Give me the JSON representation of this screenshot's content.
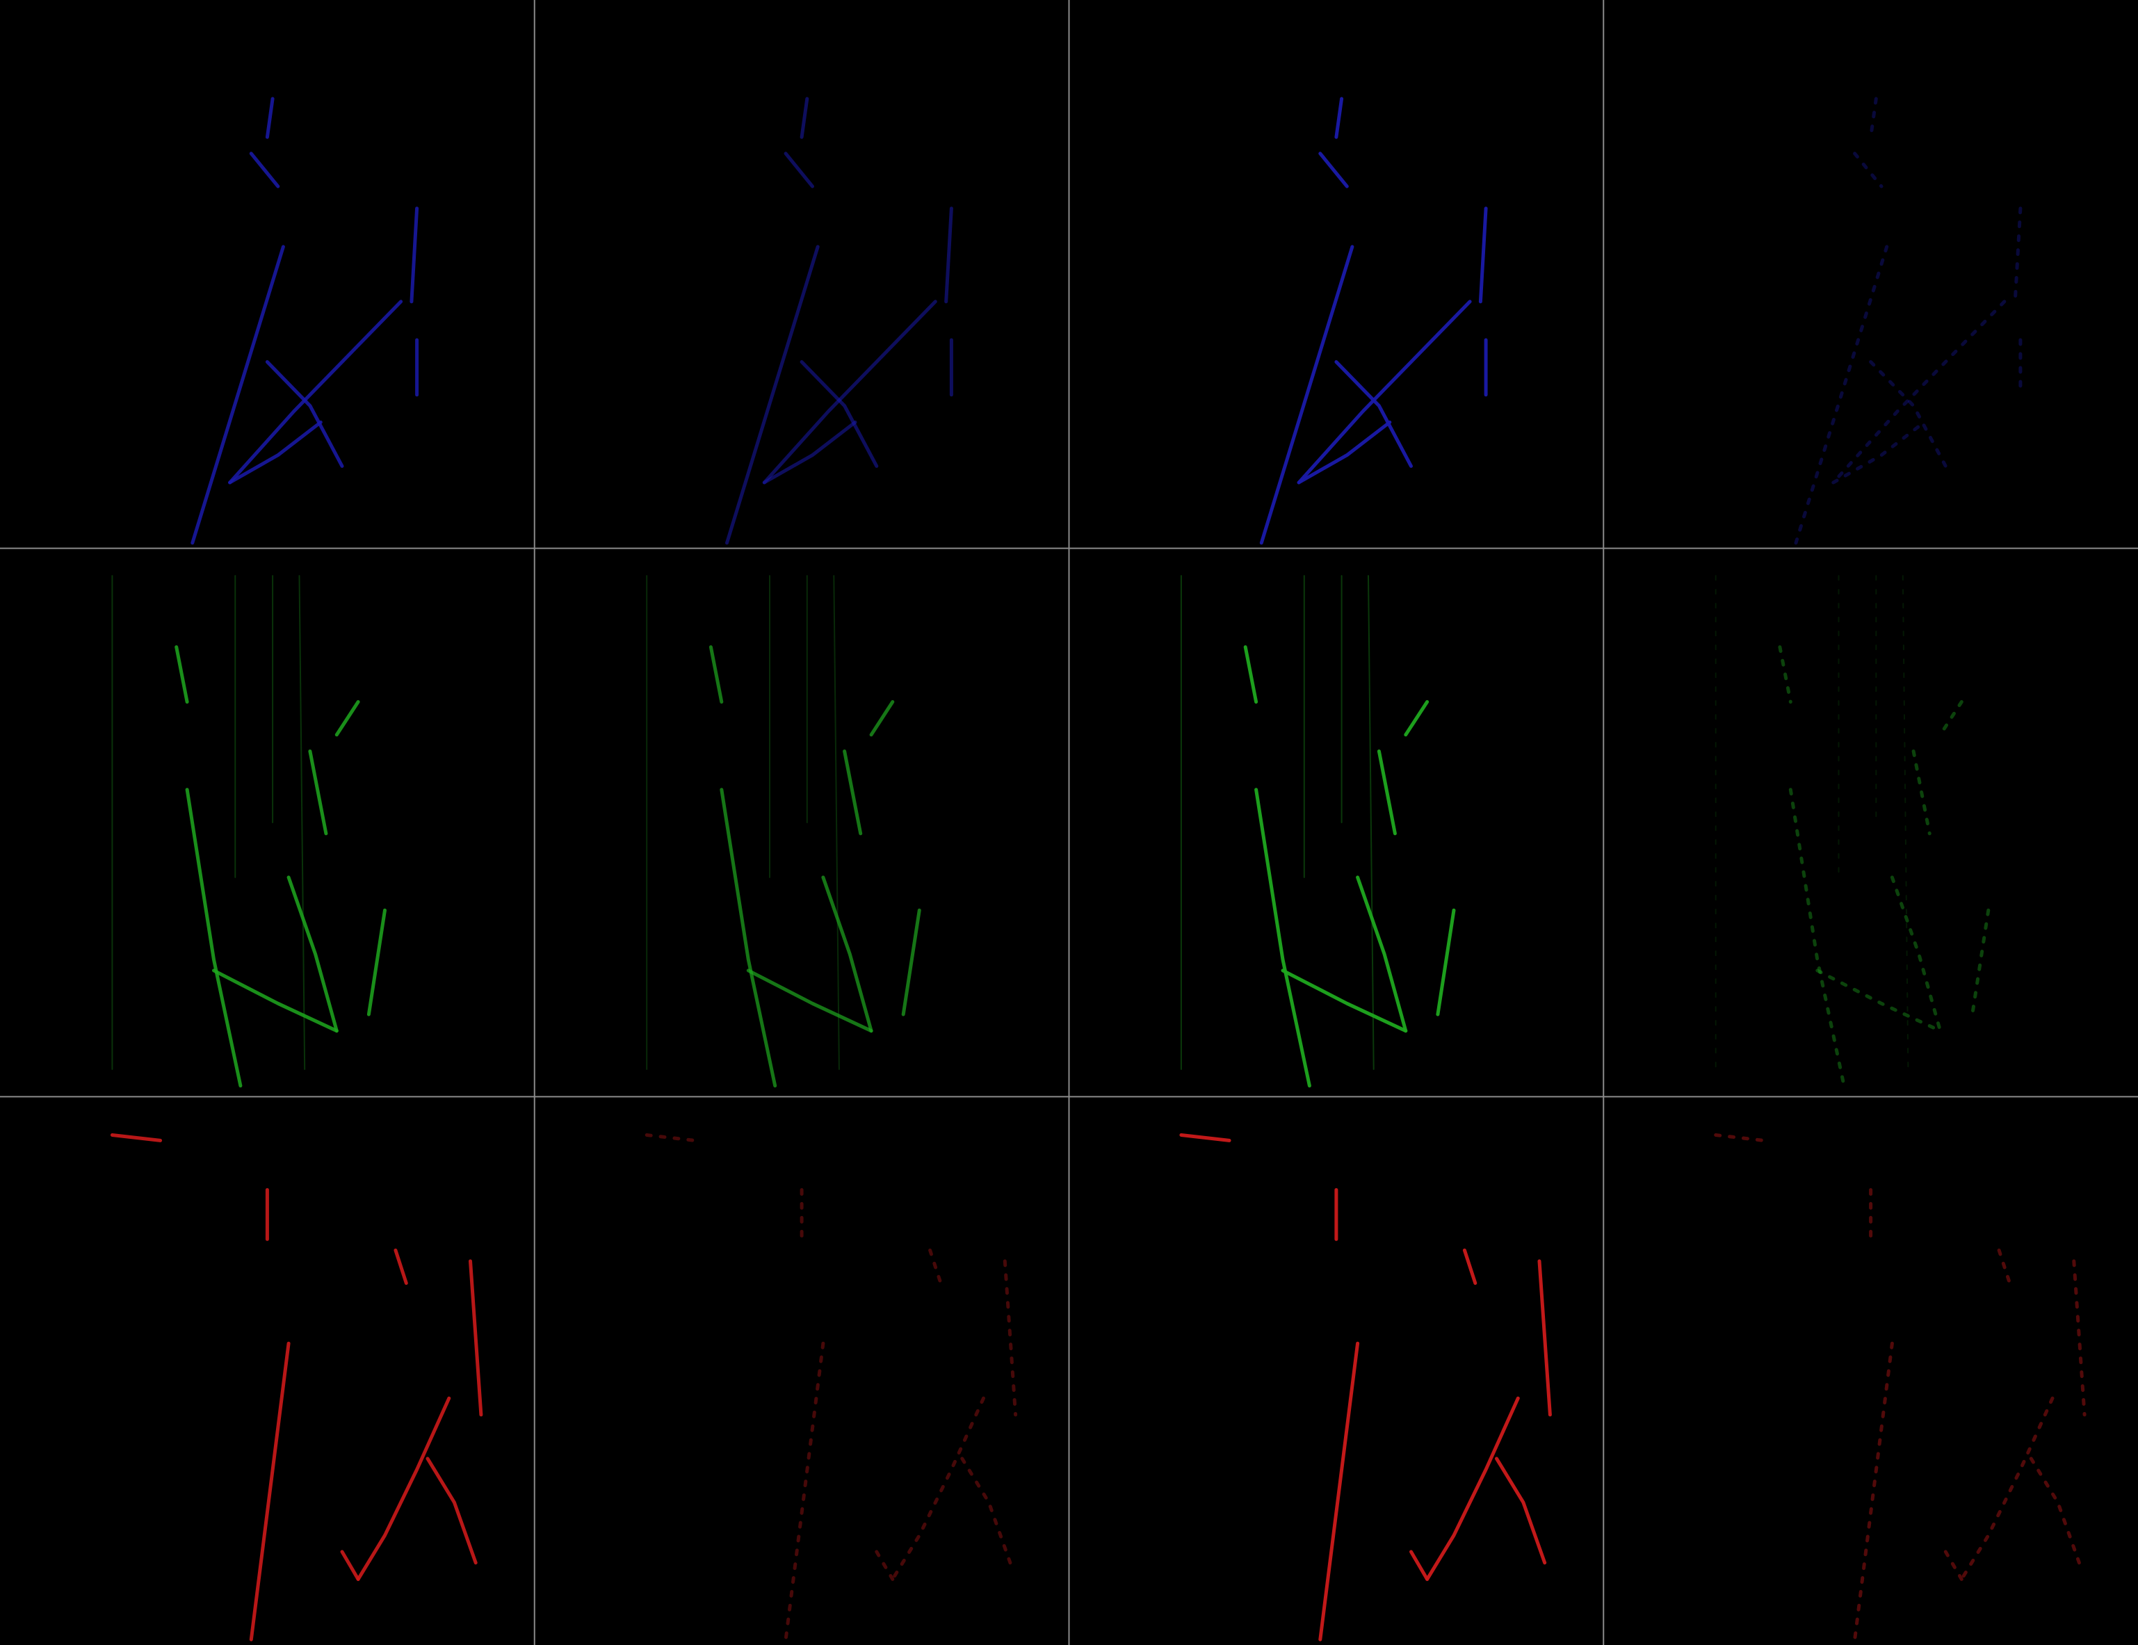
{
  "colors": {
    "background": "#000000",
    "grid_line": "#8a8a8a",
    "plane_u": "#1a1aaa",
    "plane_v": "#1fa81f",
    "plane_w": "#cc1a1a"
  },
  "grid": {
    "rows": 3,
    "cols": 4
  },
  "panels": [
    {
      "row": 0,
      "col": 0,
      "plane": "u",
      "intensity": 0.85
    },
    {
      "row": 0,
      "col": 1,
      "plane": "u",
      "intensity": 0.55
    },
    {
      "row": 0,
      "col": 2,
      "plane": "u",
      "intensity": 0.95
    },
    {
      "row": 0,
      "col": 3,
      "plane": "u",
      "intensity": 0.35
    },
    {
      "row": 1,
      "col": 0,
      "plane": "v",
      "intensity": 0.85
    },
    {
      "row": 1,
      "col": 1,
      "plane": "v",
      "intensity": 0.7
    },
    {
      "row": 1,
      "col": 2,
      "plane": "v",
      "intensity": 0.95
    },
    {
      "row": 1,
      "col": 3,
      "plane": "v",
      "intensity": 0.4
    },
    {
      "row": 2,
      "col": 0,
      "plane": "w",
      "intensity": 0.9
    },
    {
      "row": 2,
      "col": 1,
      "plane": "w",
      "intensity": 0.35
    },
    {
      "row": 2,
      "col": 2,
      "plane": "w",
      "intensity": 0.95
    },
    {
      "row": 2,
      "col": 3,
      "plane": "w",
      "intensity": 0.4
    }
  ]
}
